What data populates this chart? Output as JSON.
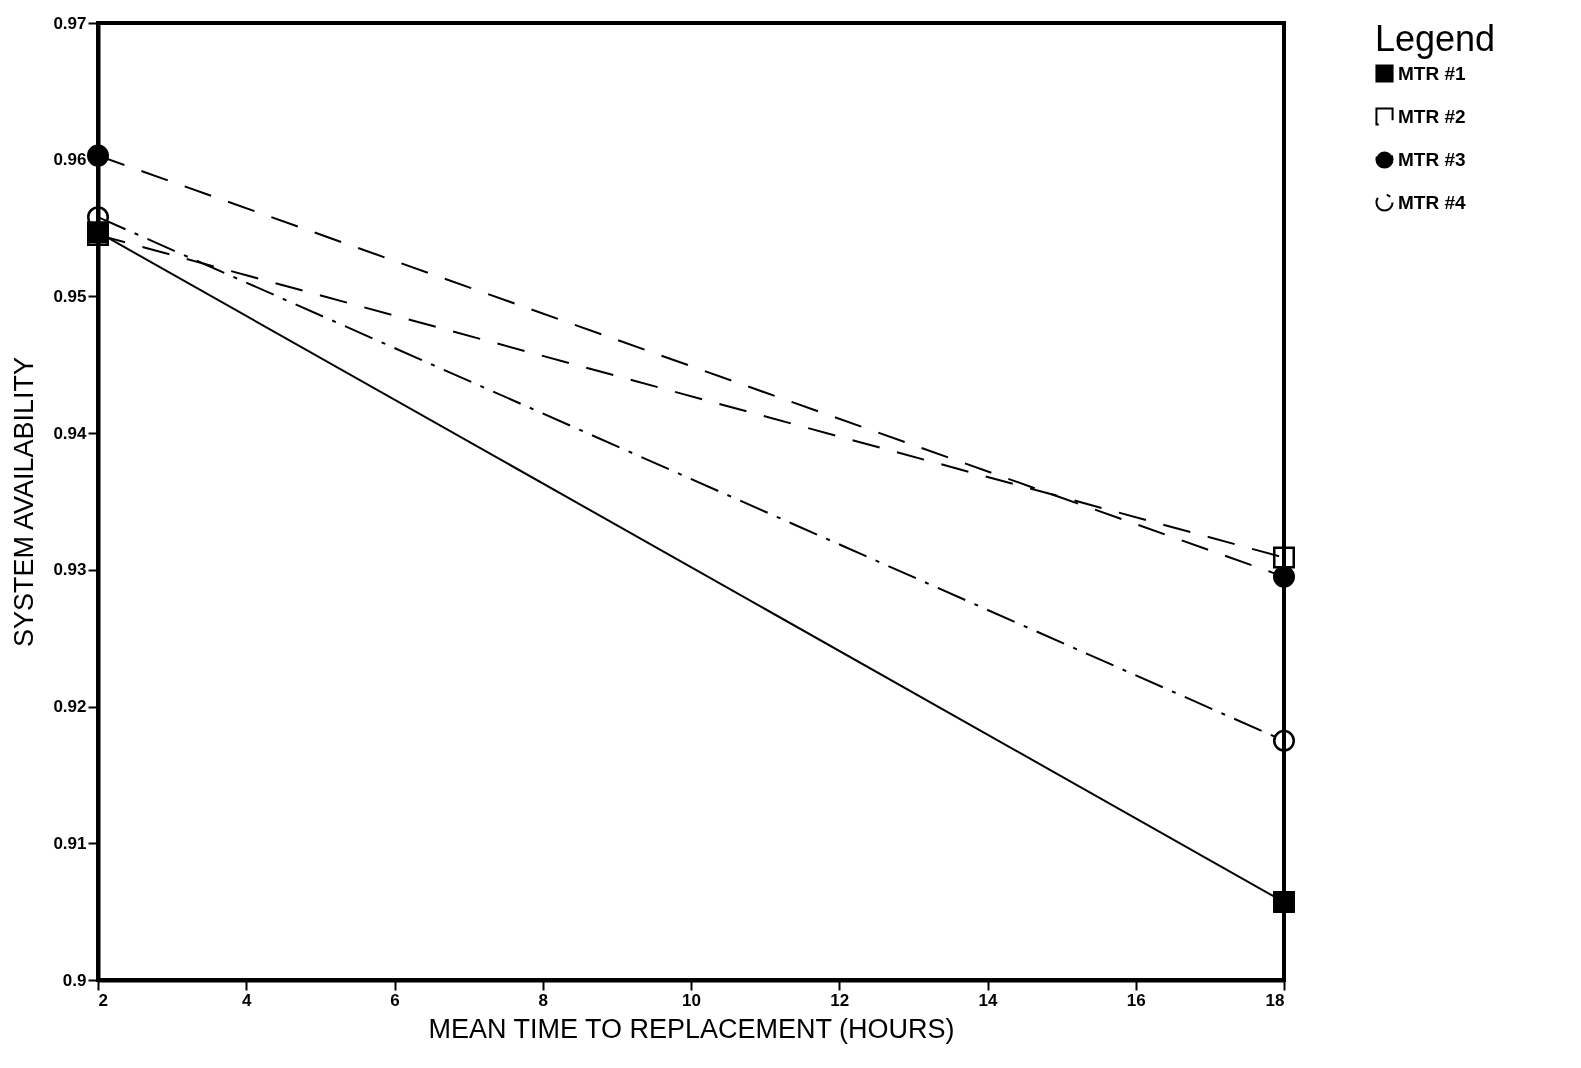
{
  "chart_data": {
    "type": "line",
    "xlabel": "MEAN TIME TO REPLACEMENT (HOURS)",
    "ylabel": "SYSTEM AVAILABILITY",
    "legend_title": "Legend",
    "legend": "right",
    "grid": false,
    "x": [
      2,
      18
    ],
    "xlim": [
      2,
      18
    ],
    "xticks": [
      2,
      4,
      6,
      8,
      10,
      12,
      14,
      16,
      18
    ],
    "ylim": [
      0.9,
      0.97
    ],
    "yticks": [
      0.9,
      0.91,
      0.92,
      0.93,
      0.94,
      0.95,
      0.96,
      0.97
    ],
    "series": [
      {
        "name": "MTR #1",
        "color": "#000000",
        "values": [
          0.9547,
          0.9057
        ],
        "marker": "square",
        "line_style": "solid"
      },
      {
        "name": "MTR #2",
        "color": "#000000",
        "values": [
          0.9545,
          0.9309
        ],
        "marker": "square",
        "line_style": "dashed"
      },
      {
        "name": "MTR #3",
        "color": "#000000",
        "values": [
          0.9603,
          0.9295
        ],
        "marker": "circle",
        "line_style": "dashed"
      },
      {
        "name": "MTR #4",
        "color": "#000000",
        "values": [
          0.9558,
          0.9175
        ],
        "marker": "circle",
        "line_style": "dashdot"
      }
    ]
  }
}
